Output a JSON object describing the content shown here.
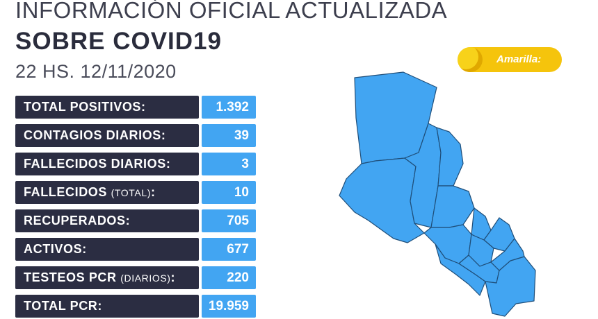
{
  "header": {
    "line1": "INFORMACIÓN OFICIAL ACTUALIZADA",
    "line2": "SOBRE COVID19",
    "line3": "22 HS. 12/11/2020"
  },
  "stats": [
    {
      "label": "TOTAL POSITIVOS",
      "suffix": "",
      "value": "1.392"
    },
    {
      "label": "CONTAGIOS DIARIOS",
      "suffix": "",
      "value": "39"
    },
    {
      "label": "FALLECIDOS DIARIOS",
      "suffix": "",
      "value": "3"
    },
    {
      "label": "FALLECIDOS",
      "suffix": "(TOTAL)",
      "value": "10"
    },
    {
      "label": "RECUPERADOS",
      "suffix": "",
      "value": "705"
    },
    {
      "label": "ACTIVOS",
      "suffix": "",
      "value": "677"
    },
    {
      "label": "TESTEOS PCR",
      "suffix": "(DIARIOS)",
      "value": "220"
    },
    {
      "label": "TOTAL PCR",
      "suffix": "",
      "value": "19.959"
    }
  ],
  "badge": {
    "text": "Amarilla:",
    "color": "#f5c40c"
  },
  "colors": {
    "label_bg": "#2b2d42",
    "value_bg": "#42a5f2",
    "map_fill": "#42a5f2",
    "map_stroke": "#1f4e79"
  }
}
